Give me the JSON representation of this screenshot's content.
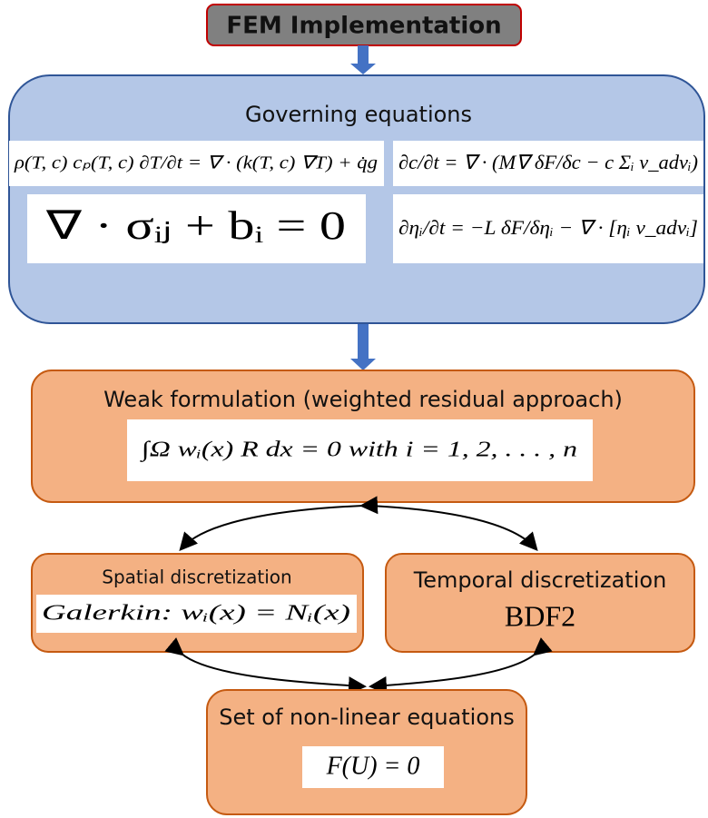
{
  "header": {
    "title": "FEM Implementation"
  },
  "governing": {
    "title": "Governing equations",
    "equations": [
      "ρ(T, c) cₚ(T, c) ∂T/∂t = ∇ · (k(T, c) ∇T) + q̇g",
      "∂c/∂t = ∇ · (M∇ δF/δc − c Σᵢ v_advᵢ)",
      "∇ · σᵢⱼ + bᵢ = 0",
      "∂ηᵢ/∂t = −L δF/δηᵢ − ∇ · [ηᵢ v_advᵢ]"
    ]
  },
  "weak": {
    "title": "Weak formulation (weighted residual approach)",
    "equation": "∫Ω wᵢ(x) R dx = 0   with   i = 1, 2, . . . , n"
  },
  "spatial": {
    "title": "Spatial discretization",
    "equation": "Galerkin: wᵢ(x) = Nᵢ(x)"
  },
  "temporal": {
    "title": "Temporal discretization",
    "equation": "BDF2"
  },
  "system": {
    "title": "Set of non-linear equations",
    "equation": "F(U) = 0"
  }
}
